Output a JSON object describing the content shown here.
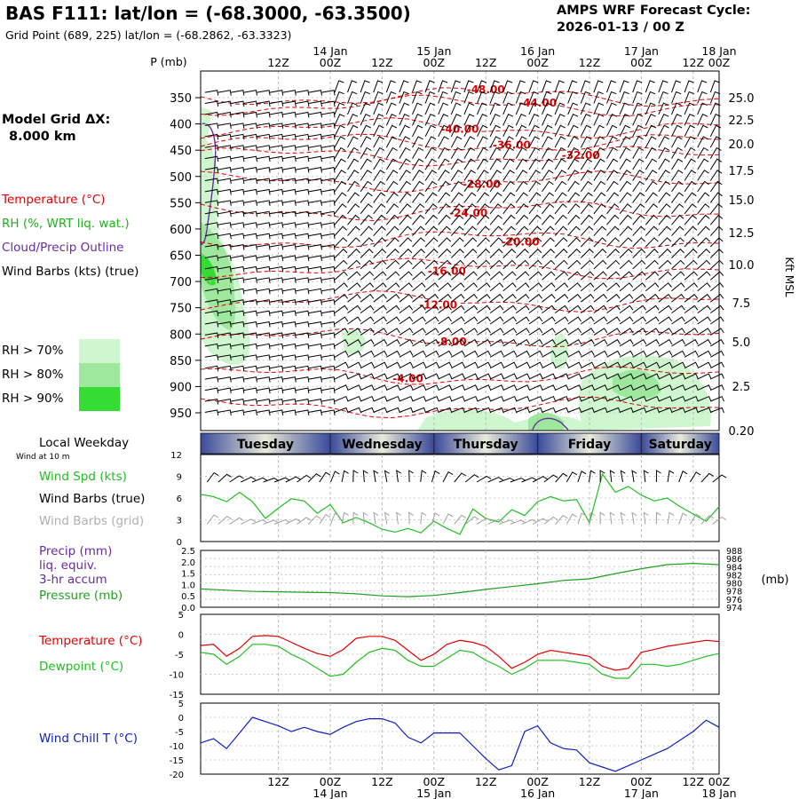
{
  "header": {
    "title": "BAS F111:  lat/lon = (-68.3000, -63.3500)",
    "subtitle": "Grid Point (689, 225) lat/lon = (-68.2862, -63.3323)",
    "cycle_line1": "AMPS WRF Forecast Cycle:",
    "cycle_line2": "2026-01-13 / 00  Z"
  },
  "model_grid": {
    "line1": "Model Grid ΔX:",
    "line2": "8.000 km"
  },
  "legend_top": {
    "temperature": "Temperature (°C)",
    "rh": "RH (%, WRT liq. wat.)",
    "cloud": "Cloud/Precip Outline",
    "wind": "Wind Barbs (kts) (true)",
    "rh70": "RH > 70%",
    "rh80": "RH > 80%",
    "rh90": "RH > 90%"
  },
  "colors": {
    "temperature": "#e00000",
    "rh70": "#cff7cf",
    "rh80": "#9ee89e",
    "rh90": "#34dc34",
    "cloud": "#6a2aa0",
    "wind_speed": "#20c020",
    "dewpoint": "#20c020",
    "windchill": "#1020c0",
    "pressure": "#20a020",
    "grid_barbs": "#a0a0a0"
  },
  "time_axis": {
    "hour_labels": [
      "12Z",
      "00Z",
      "12Z",
      "00Z",
      "12Z",
      "00Z",
      "12Z",
      "00Z",
      "12Z",
      "00Z"
    ],
    "day_labels": [
      "14 Jan",
      "15 Jan",
      "16 Jan",
      "17 Jan",
      "18 Jan"
    ],
    "weekdays": [
      "Tuesday",
      "Wednesday",
      "Thursday",
      "Friday",
      "Saturday"
    ]
  },
  "labels": {
    "p_mb": "P (mb)",
    "kft": "Kft MSL",
    "mb": "(mb)",
    "local_weekday": "Local Weekday",
    "wind_10m": "Wind at 10 m",
    "wind_spd": "Wind Spd (kts)",
    "wind_barbs_true": "Wind Barbs (true)",
    "wind_barbs_grid": "Wind Barbs (grid)",
    "precip1": "Precip (mm)",
    "precip2": "liq. equiv.",
    "precip3": "3-hr accum",
    "pressure": "Pressure (mb)",
    "temperature": "Temperature (°C)",
    "dewpoint": "Dewpoint (°C)",
    "windchill": "Wind Chill T (°C)"
  },
  "chart_data": [
    {
      "type": "heatmap",
      "panel": "vertical-profile",
      "y_axis_pressure_mb": [
        350,
        400,
        450,
        500,
        550,
        600,
        650,
        700,
        750,
        800,
        850,
        900,
        950
      ],
      "y_axis_height_kft": [
        "25.0",
        "22.5",
        "20.0",
        "17.5",
        "15.0",
        "12.5",
        "10.0",
        "7.5",
        "5.0",
        "2.5",
        "0.20"
      ],
      "temperature_contour_labels": [
        {
          "value": "-48.00",
          "hour": 66,
          "p": 335
        },
        {
          "value": "-44.00",
          "hour": 78,
          "p": 360
        },
        {
          "value": "-40.00",
          "hour": 60,
          "p": 410
        },
        {
          "value": "-36.00",
          "hour": 72,
          "p": 440
        },
        {
          "value": "-32.00",
          "hour": 88,
          "p": 460
        },
        {
          "value": "-28.00",
          "hour": 65,
          "p": 515
        },
        {
          "value": "-24.00",
          "hour": 62,
          "p": 570
        },
        {
          "value": "-20.00",
          "hour": 74,
          "p": 625
        },
        {
          "value": "-16.00",
          "hour": 57,
          "p": 680
        },
        {
          "value": "-12.00",
          "hour": 55,
          "p": 745
        },
        {
          "value": "-8.00",
          "hour": 58,
          "p": 815
        },
        {
          "value": "-4.00",
          "hour": 48,
          "p": 885
        }
      ]
    },
    {
      "type": "line",
      "panel": "wind-speed",
      "ylim": [
        0,
        12
      ],
      "yticks": [
        "0",
        "3",
        "6",
        "9",
        "12"
      ],
      "x_hours": [
        0,
        3,
        6,
        9,
        12,
        15,
        18,
        21,
        24,
        27,
        30,
        33,
        36,
        39,
        42,
        45,
        48,
        51,
        54,
        57,
        60,
        63,
        66,
        69,
        72,
        75,
        78,
        81,
        84,
        87,
        90,
        93,
        96,
        99,
        102,
        105,
        108,
        111,
        114,
        117,
        120
      ],
      "series": [
        {
          "values": [
            6.5,
            6.2,
            5.5,
            6.8,
            5.5,
            3.2,
            4.6,
            5.9,
            5.6,
            3.9,
            5.1,
            2.6,
            3.3,
            2.6,
            1.7,
            1.3,
            1.8,
            1.2,
            2.8,
            1.8,
            1.0,
            4.5,
            3.2,
            2.7,
            4.4,
            3.6,
            5.5,
            6.2,
            5.6,
            5.8,
            2.6,
            9.3,
            6.8,
            7.6,
            6.4,
            5.6,
            6.0,
            4.8,
            3.8,
            2.8,
            4.8
          ]
        }
      ]
    },
    {
      "type": "line",
      "panel": "precip-pressure",
      "precip_ylim": [
        0,
        2.5
      ],
      "precip_yticks": [
        "0.0",
        "0.5",
        "1.0",
        "1.5",
        "2.0",
        "2.5"
      ],
      "pressure_ylim": [
        974,
        988
      ],
      "pressure_yticks": [
        "974",
        "976",
        "978",
        "980",
        "982",
        "984",
        "986",
        "988"
      ],
      "x_hours": [
        0,
        6,
        12,
        18,
        24,
        30,
        36,
        42,
        48,
        54,
        60,
        66,
        72,
        78,
        84,
        90,
        96,
        102,
        108,
        114,
        120
      ],
      "series": [
        {
          "name": "Pressure (mb)",
          "values": [
            978.5,
            978.2,
            977.9,
            977.8,
            977.7,
            977.6,
            977.3,
            976.8,
            976.6,
            976.9,
            977.6,
            978.4,
            979.1,
            979.8,
            980.6,
            981.0,
            982.3,
            983.5,
            984.5,
            984.8,
            984.5
          ]
        }
      ]
    },
    {
      "type": "line",
      "panel": "temperature-dewpoint",
      "ylim": [
        -15,
        5
      ],
      "yticks": [
        "5",
        "0",
        "-5",
        "-10",
        "-15"
      ],
      "x_hours": [
        0,
        3,
        6,
        9,
        12,
        15,
        18,
        21,
        24,
        27,
        30,
        33,
        36,
        39,
        42,
        45,
        48,
        51,
        54,
        57,
        60,
        63,
        66,
        69,
        72,
        75,
        78,
        81,
        84,
        87,
        90,
        93,
        96,
        99,
        102,
        105,
        108,
        111,
        114,
        117,
        120
      ],
      "series": [
        {
          "name": "Temperature (°C)",
          "values": [
            -2.8,
            -2.5,
            -5.5,
            -3.5,
            -0.5,
            -0.3,
            -0.5,
            -2.0,
            -3.5,
            -4.8,
            -5.5,
            -3.8,
            -1.0,
            -0.5,
            -0.5,
            -1.5,
            -4.0,
            -6.5,
            -5.0,
            -2.5,
            -1.5,
            -2.0,
            -3.0,
            -5.5,
            -8.5,
            -7.0,
            -5.0,
            -4.0,
            -4.5,
            -5.0,
            -5.5,
            -8.0,
            -9.0,
            -8.5,
            -4.5,
            -3.8,
            -3.0,
            -2.5,
            -2.0,
            -1.5,
            -1.8
          ]
        },
        {
          "name": "Dewpoint (°C)",
          "values": [
            -4.5,
            -5.0,
            -7.5,
            -5.5,
            -2.5,
            -2.5,
            -3.0,
            -5.0,
            -6.5,
            -8.5,
            -10.5,
            -10.0,
            -7.0,
            -4.5,
            -3.5,
            -4.0,
            -6.5,
            -8.0,
            -8.0,
            -6.0,
            -4.0,
            -4.5,
            -6.5,
            -8.0,
            -10.0,
            -8.5,
            -6.5,
            -6.5,
            -6.5,
            -7.0,
            -7.5,
            -10.0,
            -11.0,
            -11.0,
            -7.5,
            -7.5,
            -8.0,
            -7.5,
            -6.5,
            -5.5,
            -4.8
          ]
        }
      ]
    },
    {
      "type": "line",
      "panel": "wind-chill",
      "ylim": [
        -20,
        5
      ],
      "yticks": [
        "5",
        "0",
        "-5",
        "-10",
        "-15",
        "-20"
      ],
      "x_hours": [
        0,
        3,
        6,
        9,
        12,
        15,
        18,
        21,
        24,
        27,
        30,
        33,
        36,
        39,
        42,
        45,
        48,
        51,
        54,
        57,
        60,
        63,
        66,
        69,
        72,
        75,
        78,
        81,
        84,
        87,
        90,
        93,
        96,
        99,
        102,
        105,
        108,
        111,
        114,
        117,
        120
      ],
      "series": [
        {
          "name": "Wind Chill T (°C)",
          "values": [
            -9,
            -7.5,
            -11,
            -5.5,
            0,
            -1.5,
            -3,
            -5,
            -3.5,
            -5,
            -6,
            -3.5,
            -1.5,
            -0.5,
            -0.5,
            -2,
            -7,
            -9,
            -5.5,
            -5.5,
            -5.5,
            -10,
            -14.5,
            -18.5,
            -17,
            -5,
            -3,
            -9,
            -11,
            -11.5,
            -16,
            -17.5,
            -19,
            -17,
            -15,
            -13,
            -11,
            -8,
            -5,
            -1,
            -3.5
          ]
        }
      ]
    }
  ]
}
